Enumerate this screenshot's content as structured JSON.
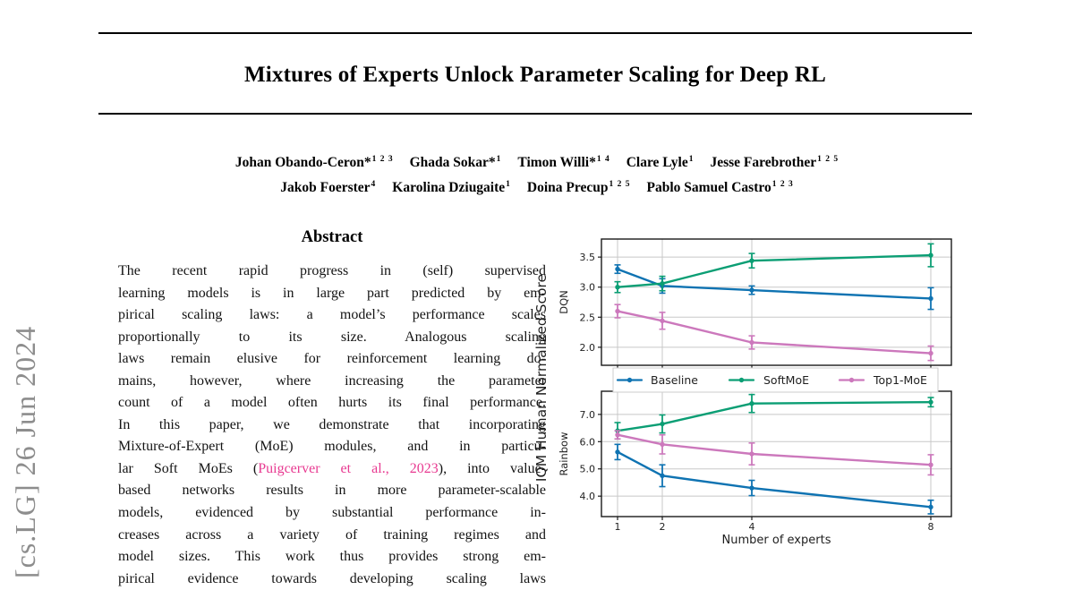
{
  "watermark": {
    "text": "[cs.LG]  26 Jun 2024"
  },
  "title": "Mixtures of Experts Unlock Parameter Scaling for Deep RL",
  "authors": {
    "lines": [
      [
        {
          "name": "Johan Obando-Ceron*",
          "sup": "1 2 3"
        },
        {
          "name": "Ghada Sokar*",
          "sup": "1"
        },
        {
          "name": "Timon Willi*",
          "sup": "1 4"
        },
        {
          "name": "Clare Lyle",
          "sup": "1"
        },
        {
          "name": "Jesse Farebrother",
          "sup": "1 2 5"
        }
      ],
      [
        {
          "name": "Jakob Foerster",
          "sup": "4"
        },
        {
          "name": "Karolina Dziugaite",
          "sup": "1"
        },
        {
          "name": "Doina Precup",
          "sup": "1 2 5"
        },
        {
          "name": "Pablo Samuel Castro",
          "sup": "1 2 3"
        }
      ]
    ]
  },
  "abstract": {
    "heading": "Abstract",
    "lines": [
      [
        {
          "t": "The recent rapid progress in (self) supervised"
        }
      ],
      [
        {
          "t": "learning models is in large part predicted by em-"
        }
      ],
      [
        {
          "t": "pirical scaling laws: a model’s performance scales"
        }
      ],
      [
        {
          "t": "proportionally to its size. Analogous scaling"
        }
      ],
      [
        {
          "t": "laws remain elusive for reinforcement learning do-"
        }
      ],
      [
        {
          "t": "mains, however, where increasing the parameter"
        }
      ],
      [
        {
          "t": "count of a model often hurts its final performance."
        }
      ],
      [
        {
          "t": "In this paper, we demonstrate that incorporating"
        }
      ],
      [
        {
          "t": "Mixture-of-Expert (MoE) modules, and in particu-"
        }
      ],
      [
        {
          "t": "lar Soft MoEs ("
        },
        {
          "t": "Puigcerver et al., 2023",
          "link": true
        },
        {
          "t": "), into value-"
        }
      ],
      [
        {
          "t": "based networks results in more parameter-scalable"
        }
      ],
      [
        {
          "t": "models, evidenced by substantial performance in-"
        }
      ],
      [
        {
          "t": "creases across a variety of training regimes and"
        }
      ],
      [
        {
          "t": "model sizes. This work thus provides strong em-"
        }
      ],
      [
        {
          "t": "pirical evidence towards developing scaling laws"
        }
      ]
    ]
  },
  "figure": {
    "ylabel": "IQM Human Normalized Score",
    "xlabel": "Number of experts",
    "legend": [
      "Baseline",
      "SoftMoE",
      "Top1-MoE"
    ]
  },
  "colors": {
    "series": {
      "Baseline": "#0f73b2",
      "SoftMoE": "#0b9e74",
      "Top1-MoE": "#cc78bc"
    },
    "citation_link": "#e83a91",
    "watermark": "#8d8d8d",
    "grid": "#c8c8c8",
    "frame": "#1a1a1a",
    "tick_text": "#1f1f1f"
  },
  "chart_data": [
    {
      "type": "line",
      "panel": "DQN",
      "x": [
        1,
        2,
        4,
        8
      ],
      "xscale": "linear",
      "xlim": [
        0.64,
        8.46
      ],
      "ylim": [
        1.7,
        3.8
      ],
      "yticks": [
        2.0,
        2.5,
        3.0,
        3.5
      ],
      "grid": true,
      "series": [
        {
          "name": "Baseline",
          "values": [
            3.3,
            3.02,
            2.95,
            2.81
          ],
          "err": [
            0.07,
            0.12,
            0.07,
            0.18
          ]
        },
        {
          "name": "SoftMoE",
          "values": [
            3.0,
            3.06,
            3.44,
            3.53
          ],
          "err": [
            0.09,
            0.12,
            0.12,
            0.19
          ]
        },
        {
          "name": "Top1-MoE",
          "values": [
            2.6,
            2.44,
            2.08,
            1.9
          ],
          "err": [
            0.11,
            0.14,
            0.11,
            0.12
          ]
        }
      ]
    },
    {
      "type": "line",
      "panel": "Rainbow",
      "x": [
        1,
        2,
        4,
        8
      ],
      "xscale": "linear",
      "xlim": [
        0.64,
        8.46
      ],
      "ylim": [
        3.25,
        7.85
      ],
      "yticks": [
        4.0,
        5.0,
        6.0,
        7.0
      ],
      "xticklabels": [
        "1",
        "2",
        "4",
        "8"
      ],
      "xlabel": "Number of experts",
      "grid": true,
      "series": [
        {
          "name": "Baseline",
          "values": [
            5.62,
            4.75,
            4.3,
            3.6
          ],
          "err": [
            0.28,
            0.4,
            0.28,
            0.25
          ]
        },
        {
          "name": "SoftMoE",
          "values": [
            6.4,
            6.65,
            7.4,
            7.45
          ],
          "err": [
            0.3,
            0.33,
            0.33,
            0.17
          ]
        },
        {
          "name": "Top1-MoE",
          "values": [
            6.25,
            5.9,
            5.55,
            5.15
          ],
          "err": [
            0.15,
            0.35,
            0.4,
            0.37
          ]
        }
      ]
    }
  ]
}
